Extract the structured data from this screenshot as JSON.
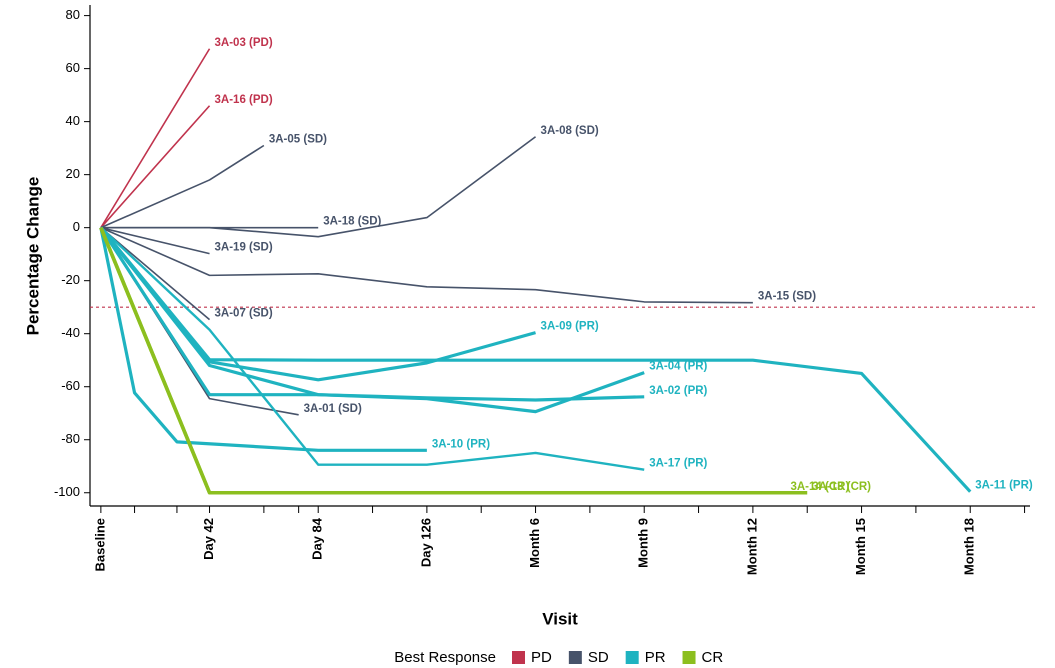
{
  "chart_data": {
    "type": "line",
    "x_title": "Visit",
    "y_title": "Percentage Change",
    "xlim": [
      -0.1,
      8.55
    ],
    "xticks": [
      {
        "value": 0,
        "label": "Baseline"
      },
      {
        "value": 1,
        "label": "Day 42"
      },
      {
        "value": 2,
        "label": "Day 84"
      },
      {
        "value": 3,
        "label": "Day 126"
      },
      {
        "value": 4,
        "label": "Month 6"
      },
      {
        "value": 5,
        "label": "Month 9"
      },
      {
        "value": 6,
        "label": "Month 12"
      },
      {
        "value": 7,
        "label": "Month 15"
      },
      {
        "value": 8,
        "label": "Month 18"
      }
    ],
    "xminorticks": [
      0.31,
      0.7,
      1.5,
      1.82,
      2.5,
      3.5,
      4.5,
      5.5,
      6.5,
      7.5,
      8.5
    ],
    "ylim": [
      -105,
      84
    ],
    "yticks": [
      -100,
      -80,
      -60,
      -40,
      -20,
      0,
      20,
      40,
      60,
      80
    ],
    "reference_line": {
      "value": -30,
      "color": "#c0334d"
    },
    "legend": {
      "title": "Best Response",
      "position": "bottom",
      "items": [
        {
          "name": "PD",
          "color": "#c0334d"
        },
        {
          "name": "SD",
          "color": "#47536a"
        },
        {
          "name": "PR",
          "color": "#1fb3c0"
        },
        {
          "name": "CR",
          "color": "#8cbf1f"
        }
      ]
    },
    "series": [
      {
        "name": "3A-03 (PD)",
        "color": "#c0334d",
        "line_width": 1.6,
        "x": [
          0,
          1
        ],
        "values": [
          0,
          67.5
        ]
      },
      {
        "name": "3A-16 (PD)",
        "color": "#c0334d",
        "line_width": 1.6,
        "x": [
          0,
          1
        ],
        "values": [
          0,
          46
        ]
      },
      {
        "name": "3A-05 (SD)",
        "color": "#47536a",
        "line_width": 1.6,
        "x": [
          0,
          1,
          1.5
        ],
        "values": [
          0,
          18,
          31
        ]
      },
      {
        "name": "3A-08 (SD)",
        "color": "#47536a",
        "line_width": 1.6,
        "x": [
          0,
          1,
          2,
          3,
          4
        ],
        "values": [
          0,
          0,
          -3.4,
          3.8,
          34.3
        ]
      },
      {
        "name": "3A-18 (SD)",
        "color": "#47536a",
        "line_width": 1.6,
        "x": [
          0,
          1,
          2
        ],
        "values": [
          0,
          0,
          0
        ]
      },
      {
        "name": "3A-19 (SD)",
        "color": "#47536a",
        "line_width": 1.6,
        "x": [
          0,
          1
        ],
        "values": [
          0,
          -9.8
        ]
      },
      {
        "name": "3A-15 (SD)",
        "color": "#47536a",
        "line_width": 1.6,
        "x": [
          0,
          1,
          2,
          3,
          4,
          5,
          6
        ],
        "values": [
          0,
          -18,
          -17.4,
          -22.3,
          -23.4,
          -28,
          -28.3
        ]
      },
      {
        "name": "3A-07 (SD)",
        "color": "#47536a",
        "line_width": 1.6,
        "x": [
          0,
          1
        ],
        "values": [
          0,
          -34.7
        ]
      },
      {
        "name": "3A-01 (SD)",
        "color": "#47536a",
        "line_width": 1.6,
        "x": [
          0,
          1,
          1.82
        ],
        "values": [
          0,
          -64.5,
          -70.6
        ]
      },
      {
        "name": "3A-09 (PR)",
        "color": "#1fb3c0",
        "line_width": 3.2,
        "x": [
          0,
          1,
          2,
          3,
          4
        ],
        "values": [
          0,
          -50.6,
          -57.4,
          -51,
          -39.6
        ]
      },
      {
        "name": "3A-04 (PR)",
        "color": "#1fb3c0",
        "line_width": 3.2,
        "x": [
          0,
          1,
          2,
          3,
          4,
          5
        ],
        "values": [
          0,
          -52,
          -63,
          -64.5,
          -69.4,
          -54.7
        ]
      },
      {
        "name": "3A-02 (PR)",
        "color": "#1fb3c0",
        "line_width": 3.2,
        "x": [
          0,
          1,
          2,
          3,
          4,
          5
        ],
        "values": [
          0,
          -63,
          -63,
          -64.2,
          -65,
          -63.8
        ]
      },
      {
        "name": "3A-11 (PR)",
        "color": "#1fb3c0",
        "line_width": 3.2,
        "x": [
          0,
          1,
          2,
          3,
          4,
          5,
          6,
          7,
          8
        ],
        "values": [
          0,
          -49.8,
          -50,
          -50,
          -50,
          -50,
          -50,
          -55,
          -99.6
        ]
      },
      {
        "name": "3A-10 (PR)",
        "color": "#1fb3c0",
        "line_width": 3.2,
        "x": [
          0,
          0.31,
          0.7,
          2,
          3
        ],
        "values": [
          0,
          -62.3,
          -80.8,
          -84,
          -84
        ]
      },
      {
        "name": "3A-17 (PR)",
        "color": "#1fb3c0",
        "line_width": 2.4,
        "x": [
          0,
          1,
          2,
          3,
          4,
          5
        ],
        "values": [
          0,
          -38.5,
          -89.4,
          -89.4,
          -85,
          -91.3
        ]
      },
      {
        "name": "3A-14 (CR)",
        "color": "#8cbf1f",
        "line_width": 3.6,
        "x": [
          0,
          1,
          6.3
        ],
        "values": [
          0,
          -100,
          -100
        ]
      },
      {
        "name": "3A-13 (CR)",
        "color": "#8cbf1f",
        "line_width": 3.6,
        "x": [
          0,
          1,
          6.5
        ],
        "values": [
          0,
          -100,
          -100
        ]
      }
    ]
  }
}
